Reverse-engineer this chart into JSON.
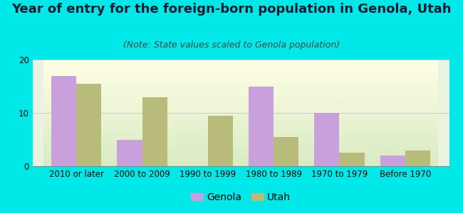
{
  "title": "Year of entry for the foreign-born population in Genola, Utah",
  "subtitle": "(Note: State values scaled to Genola population)",
  "categories": [
    "2010 or later",
    "2000 to 2009",
    "1990 to 1999",
    "1980 to 1989",
    "1970 to 1979",
    "Before 1970"
  ],
  "genola_values": [
    17.0,
    5.0,
    0.0,
    15.0,
    10.0,
    2.0
  ],
  "utah_values": [
    15.5,
    13.0,
    9.5,
    5.5,
    2.5,
    3.0
  ],
  "genola_color": "#c9a0dc",
  "utah_color": "#b8bb7a",
  "background_outer": "#00e8e8",
  "background_inner_top": "#f5fff5",
  "background_inner_bottom": "#d8edd0",
  "ylim": [
    0,
    20
  ],
  "yticks": [
    0,
    10,
    20
  ],
  "bar_width": 0.38,
  "legend_genola": "Genola",
  "legend_utah": "Utah",
  "title_fontsize": 13,
  "subtitle_fontsize": 9,
  "tick_fontsize": 8.5,
  "legend_fontsize": 10,
  "grid_color": "#cccccc",
  "separator_color": "#aaaaaa",
  "title_color": "#1a1a2e",
  "subtitle_color": "#444444"
}
